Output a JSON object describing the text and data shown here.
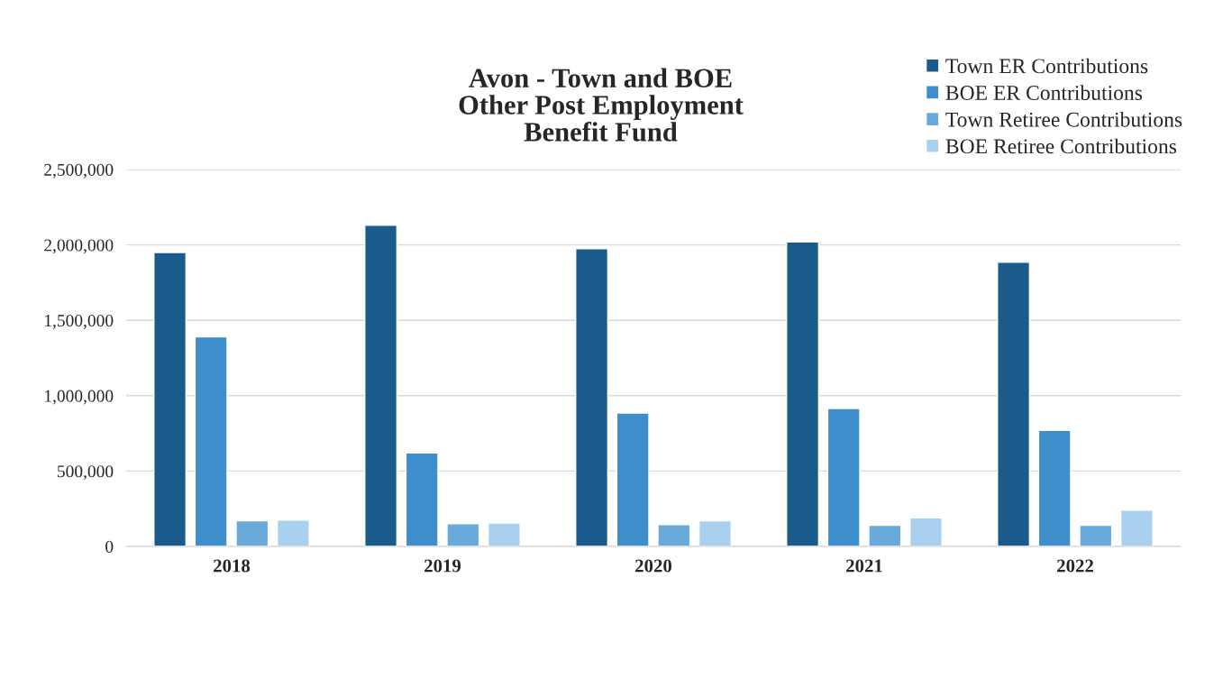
{
  "chart_data": {
    "type": "bar",
    "title": "Avon - Town and BOE\nOther Post Employment\nBenefit Fund",
    "categories": [
      "2018",
      "2019",
      "2020",
      "2021",
      "2022"
    ],
    "series": [
      {
        "name": "Town ER Contributions",
        "color": "#1b5b8c",
        "values": [
          1950000,
          2130000,
          1975000,
          2020000,
          1885000
        ]
      },
      {
        "name": "BOE ER Contributions",
        "color": "#3d8ecb",
        "values": [
          1390000,
          620000,
          885000,
          915000,
          770000
        ]
      },
      {
        "name": "Town Retiree Contributions",
        "color": "#6aaadb",
        "values": [
          170000,
          150000,
          145000,
          140000,
          140000
        ]
      },
      {
        "name": "BOE Retiree Contributions",
        "color": "#a9d1ef",
        "values": [
          175000,
          155000,
          170000,
          190000,
          240000
        ]
      }
    ],
    "ylim": [
      0,
      2500000
    ],
    "yticks": [
      {
        "value": 0,
        "label": "0"
      },
      {
        "value": 500000,
        "label": "500,000"
      },
      {
        "value": 1000000,
        "label": "1,000,000"
      },
      {
        "value": 1500000,
        "label": "1,500,000"
      },
      {
        "value": 2000000,
        "label": "2,000,000"
      },
      {
        "value": 2500000,
        "label": "2,500,000"
      }
    ],
    "grid": "y",
    "legend": "top right"
  }
}
